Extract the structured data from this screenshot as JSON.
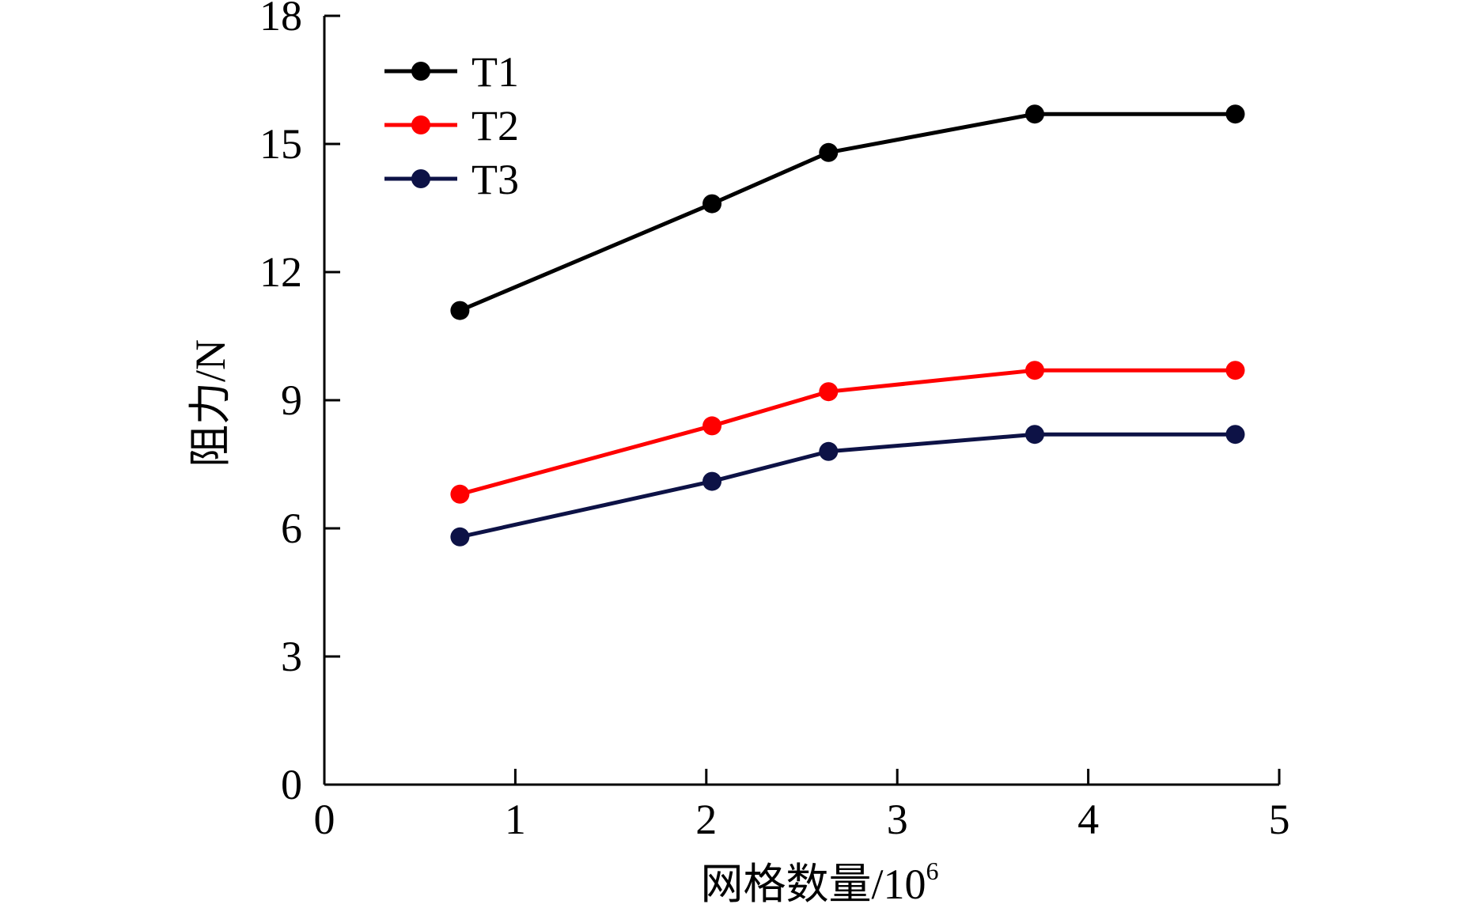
{
  "chart_data": {
    "type": "line",
    "xlabel": "网格数量/10",
    "xlabel_superscript": "6",
    "ylabel": "阻力/N",
    "xlim": [
      0,
      5
    ],
    "ylim": [
      0,
      18
    ],
    "xticks": [
      "0",
      "1",
      "2",
      "3",
      "4",
      "5"
    ],
    "yticks": [
      "0",
      "3",
      "6",
      "9",
      "12",
      "15",
      "18"
    ],
    "grid": false,
    "legend_position": "top-left",
    "series": [
      {
        "name": "T1",
        "color": "#000000",
        "x": [
          0.71,
          2.03,
          2.64,
          3.72,
          4.77
        ],
        "y": [
          11.1,
          13.6,
          14.8,
          15.7,
          15.7
        ]
      },
      {
        "name": "T2",
        "color": "#ff0000",
        "x": [
          0.71,
          2.03,
          2.64,
          3.72,
          4.77
        ],
        "y": [
          6.8,
          8.4,
          9.2,
          9.7,
          9.7
        ]
      },
      {
        "name": "T3",
        "color": "#0d1246",
        "x": [
          0.71,
          2.03,
          2.64,
          3.72,
          4.77
        ],
        "y": [
          5.8,
          7.1,
          7.8,
          8.2,
          8.2
        ]
      }
    ]
  }
}
